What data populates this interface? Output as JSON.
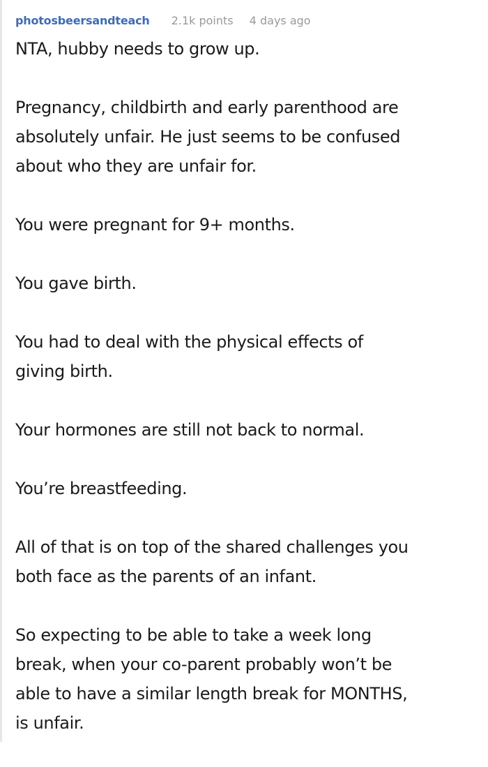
{
  "comment": {
    "author": "photosbeersandteach",
    "points": "2.1k points",
    "time": "4 days ago",
    "paragraphs": [
      [
        "NTA, hubby needs to grow up."
      ],
      [
        "Pregnancy, childbirth and early parenthood are",
        "absolutely unfair. He just seems to be confused",
        "about who they are unfair for."
      ],
      [
        "You were pregnant for 9+ months."
      ],
      [
        "You gave birth."
      ],
      [
        "You had to deal with the physical effects of",
        "giving birth."
      ],
      [
        "Your hormones are still not back to normal."
      ],
      [
        "You’re breastfeeding."
      ],
      [
        "All of that is on top of the shared challenges you",
        "both face as the parents of an infant."
      ],
      [
        "So expecting to be able to take a week long",
        "break, when your co-parent probably won’t be",
        "able to have a similar length break for MONTHS,",
        "is unfair."
      ]
    ]
  },
  "colors": {
    "author": "#3d6bbf",
    "meta": "#999999",
    "text": "#1a1a1a"
  }
}
